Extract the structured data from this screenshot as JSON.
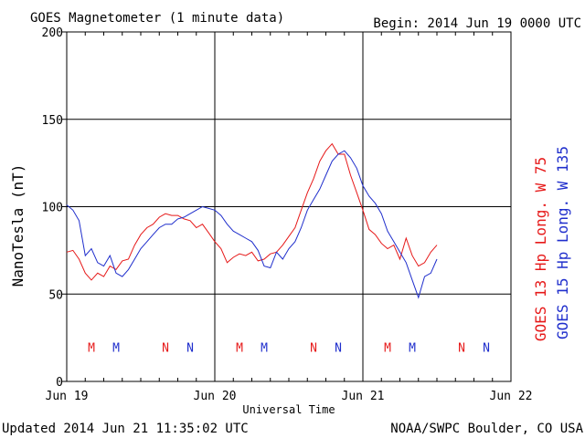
{
  "title": "GOES Magnetometer (1 minute data)",
  "begin_label": "Begin:  2014 Jun 19 0000 UTC",
  "updated_label": "Updated 2014 Jun 21 11:35:02 UTC",
  "credit_label": "NOAA/SWPC Boulder, CO USA",
  "colors": {
    "goes13": "#e61919",
    "goes15": "#1f2ecc",
    "axis": "#000000"
  },
  "chart_data": {
    "type": "line",
    "xlabel": "Universal Time",
    "ylabel": "NanoTesla (nT)",
    "ylim": [
      0,
      200
    ],
    "yticks": [
      0,
      50,
      100,
      150,
      200
    ],
    "xlim": [
      "2014-06-19",
      "2014-06-22"
    ],
    "xticks": [
      {
        "day": "2014-06-19",
        "label": "Jun 19"
      },
      {
        "day": "2014-06-20",
        "label": "Jun 20"
      },
      {
        "day": "2014-06-21",
        "label": "Jun 21"
      },
      {
        "day": "2014-06-22",
        "label": "Jun 22"
      }
    ],
    "grid": true,
    "legend_position": "right, rotated vertical",
    "series": [
      {
        "name": "GOES 13 Hp",
        "legend_label": "GOES 13 Hp  Long. W 75",
        "color": "#e61919",
        "points": [
          [
            "2014-06-19 00:00",
            74
          ],
          [
            "2014-06-19 01:00",
            75
          ],
          [
            "2014-06-19 02:00",
            70
          ],
          [
            "2014-06-19 03:00",
            62
          ],
          [
            "2014-06-19 04:00",
            58
          ],
          [
            "2014-06-19 05:00",
            62
          ],
          [
            "2014-06-19 06:00",
            60
          ],
          [
            "2014-06-19 07:00",
            66
          ],
          [
            "2014-06-19 08:00",
            64
          ],
          [
            "2014-06-19 09:00",
            69
          ],
          [
            "2014-06-19 10:00",
            70
          ],
          [
            "2014-06-19 11:00",
            78
          ],
          [
            "2014-06-19 12:00",
            84
          ],
          [
            "2014-06-19 13:00",
            88
          ],
          [
            "2014-06-19 14:00",
            90
          ],
          [
            "2014-06-19 15:00",
            94
          ],
          [
            "2014-06-19 16:00",
            96
          ],
          [
            "2014-06-19 17:00",
            95
          ],
          [
            "2014-06-19 18:00",
            95
          ],
          [
            "2014-06-19 19:00",
            93
          ],
          [
            "2014-06-19 20:00",
            92
          ],
          [
            "2014-06-19 21:00",
            88
          ],
          [
            "2014-06-19 22:00",
            90
          ],
          [
            "2014-06-19 23:00",
            85
          ],
          [
            "2014-06-20 00:00",
            80
          ],
          [
            "2014-06-20 01:00",
            76
          ],
          [
            "2014-06-20 02:00",
            68
          ],
          [
            "2014-06-20 03:00",
            71
          ],
          [
            "2014-06-20 04:00",
            73
          ],
          [
            "2014-06-20 05:00",
            72
          ],
          [
            "2014-06-20 06:00",
            74
          ],
          [
            "2014-06-20 07:00",
            69
          ],
          [
            "2014-06-20 08:00",
            70
          ],
          [
            "2014-06-20 09:00",
            73
          ],
          [
            "2014-06-20 10:00",
            74
          ],
          [
            "2014-06-20 11:00",
            78
          ],
          [
            "2014-06-20 12:00",
            83
          ],
          [
            "2014-06-20 13:00",
            88
          ],
          [
            "2014-06-20 14:00",
            98
          ],
          [
            "2014-06-20 15:00",
            108
          ],
          [
            "2014-06-20 16:00",
            116
          ],
          [
            "2014-06-20 17:00",
            126
          ],
          [
            "2014-06-20 18:00",
            132
          ],
          [
            "2014-06-20 19:00",
            136
          ],
          [
            "2014-06-20 20:00",
            130
          ],
          [
            "2014-06-20 21:00",
            130
          ],
          [
            "2014-06-20 22:00",
            118
          ],
          [
            "2014-06-20 23:00",
            108
          ],
          [
            "2014-06-21 00:00",
            98
          ],
          [
            "2014-06-21 01:00",
            87
          ],
          [
            "2014-06-21 02:00",
            84
          ],
          [
            "2014-06-21 03:00",
            79
          ],
          [
            "2014-06-21 04:00",
            76
          ],
          [
            "2014-06-21 05:00",
            78
          ],
          [
            "2014-06-21 06:00",
            70
          ],
          [
            "2014-06-21 07:00",
            82
          ],
          [
            "2014-06-21 08:00",
            72
          ],
          [
            "2014-06-21 09:00",
            66
          ],
          [
            "2014-06-21 10:00",
            68
          ],
          [
            "2014-06-21 11:00",
            74
          ],
          [
            "2014-06-21 12:00",
            78
          ]
        ]
      },
      {
        "name": "GOES 15 Hp",
        "legend_label": "GOES 15 Hp  Long. W 135",
        "color": "#1f2ecc",
        "points": [
          [
            "2014-06-19 00:00",
            101
          ],
          [
            "2014-06-19 01:00",
            98
          ],
          [
            "2014-06-19 02:00",
            92
          ],
          [
            "2014-06-19 03:00",
            72
          ],
          [
            "2014-06-19 04:00",
            76
          ],
          [
            "2014-06-19 05:00",
            68
          ],
          [
            "2014-06-19 06:00",
            66
          ],
          [
            "2014-06-19 07:00",
            72
          ],
          [
            "2014-06-19 08:00",
            62
          ],
          [
            "2014-06-19 09:00",
            60
          ],
          [
            "2014-06-19 10:00",
            64
          ],
          [
            "2014-06-19 11:00",
            70
          ],
          [
            "2014-06-19 12:00",
            76
          ],
          [
            "2014-06-19 13:00",
            80
          ],
          [
            "2014-06-19 14:00",
            84
          ],
          [
            "2014-06-19 15:00",
            88
          ],
          [
            "2014-06-19 16:00",
            90
          ],
          [
            "2014-06-19 17:00",
            90
          ],
          [
            "2014-06-19 18:00",
            93
          ],
          [
            "2014-06-19 19:00",
            94
          ],
          [
            "2014-06-19 20:00",
            96
          ],
          [
            "2014-06-19 21:00",
            98
          ],
          [
            "2014-06-19 22:00",
            100
          ],
          [
            "2014-06-19 23:00",
            99
          ],
          [
            "2014-06-20 00:00",
            98
          ],
          [
            "2014-06-20 01:00",
            95
          ],
          [
            "2014-06-20 02:00",
            90
          ],
          [
            "2014-06-20 03:00",
            86
          ],
          [
            "2014-06-20 04:00",
            84
          ],
          [
            "2014-06-20 05:00",
            82
          ],
          [
            "2014-06-20 06:00",
            80
          ],
          [
            "2014-06-20 07:00",
            75
          ],
          [
            "2014-06-20 08:00",
            66
          ],
          [
            "2014-06-20 09:00",
            65
          ],
          [
            "2014-06-20 10:00",
            74
          ],
          [
            "2014-06-20 11:00",
            70
          ],
          [
            "2014-06-20 12:00",
            76
          ],
          [
            "2014-06-20 13:00",
            80
          ],
          [
            "2014-06-20 14:00",
            88
          ],
          [
            "2014-06-20 15:00",
            98
          ],
          [
            "2014-06-20 16:00",
            104
          ],
          [
            "2014-06-20 17:00",
            110
          ],
          [
            "2014-06-20 18:00",
            118
          ],
          [
            "2014-06-20 19:00",
            126
          ],
          [
            "2014-06-20 20:00",
            130
          ],
          [
            "2014-06-20 21:00",
            132
          ],
          [
            "2014-06-20 22:00",
            128
          ],
          [
            "2014-06-20 23:00",
            122
          ],
          [
            "2014-06-21 00:00",
            112
          ],
          [
            "2014-06-21 01:00",
            106
          ],
          [
            "2014-06-21 02:00",
            102
          ],
          [
            "2014-06-21 03:00",
            96
          ],
          [
            "2014-06-21 04:00",
            86
          ],
          [
            "2014-06-21 05:00",
            80
          ],
          [
            "2014-06-21 06:00",
            74
          ],
          [
            "2014-06-21 07:00",
            68
          ],
          [
            "2014-06-21 08:00",
            58
          ],
          [
            "2014-06-21 09:00",
            48
          ],
          [
            "2014-06-21 10:00",
            60
          ],
          [
            "2014-06-21 11:00",
            62
          ],
          [
            "2014-06-21 12:00",
            70
          ]
        ]
      }
    ],
    "annotations": [
      {
        "text": "M",
        "day": "2014-06-19 04:00",
        "y": 17,
        "series": "GOES 13 Hp"
      },
      {
        "text": "M",
        "day": "2014-06-19 08:00",
        "y": 17,
        "series": "GOES 15 Hp"
      },
      {
        "text": "N",
        "day": "2014-06-19 16:00",
        "y": 17,
        "series": "GOES 13 Hp"
      },
      {
        "text": "N",
        "day": "2014-06-19 20:00",
        "y": 17,
        "series": "GOES 15 Hp"
      },
      {
        "text": "M",
        "day": "2014-06-20 04:00",
        "y": 17,
        "series": "GOES 13 Hp"
      },
      {
        "text": "M",
        "day": "2014-06-20 08:00",
        "y": 17,
        "series": "GOES 15 Hp"
      },
      {
        "text": "N",
        "day": "2014-06-20 16:00",
        "y": 17,
        "series": "GOES 13 Hp"
      },
      {
        "text": "N",
        "day": "2014-06-20 20:00",
        "y": 17,
        "series": "GOES 15 Hp"
      },
      {
        "text": "M",
        "day": "2014-06-21 04:00",
        "y": 17,
        "series": "GOES 13 Hp"
      },
      {
        "text": "M",
        "day": "2014-06-21 08:00",
        "y": 17,
        "series": "GOES 15 Hp"
      },
      {
        "text": "N",
        "day": "2014-06-21 16:00",
        "y": 17,
        "series": "GOES 13 Hp"
      },
      {
        "text": "N",
        "day": "2014-06-21 20:00",
        "y": 17,
        "series": "GOES 15 Hp"
      }
    ]
  }
}
